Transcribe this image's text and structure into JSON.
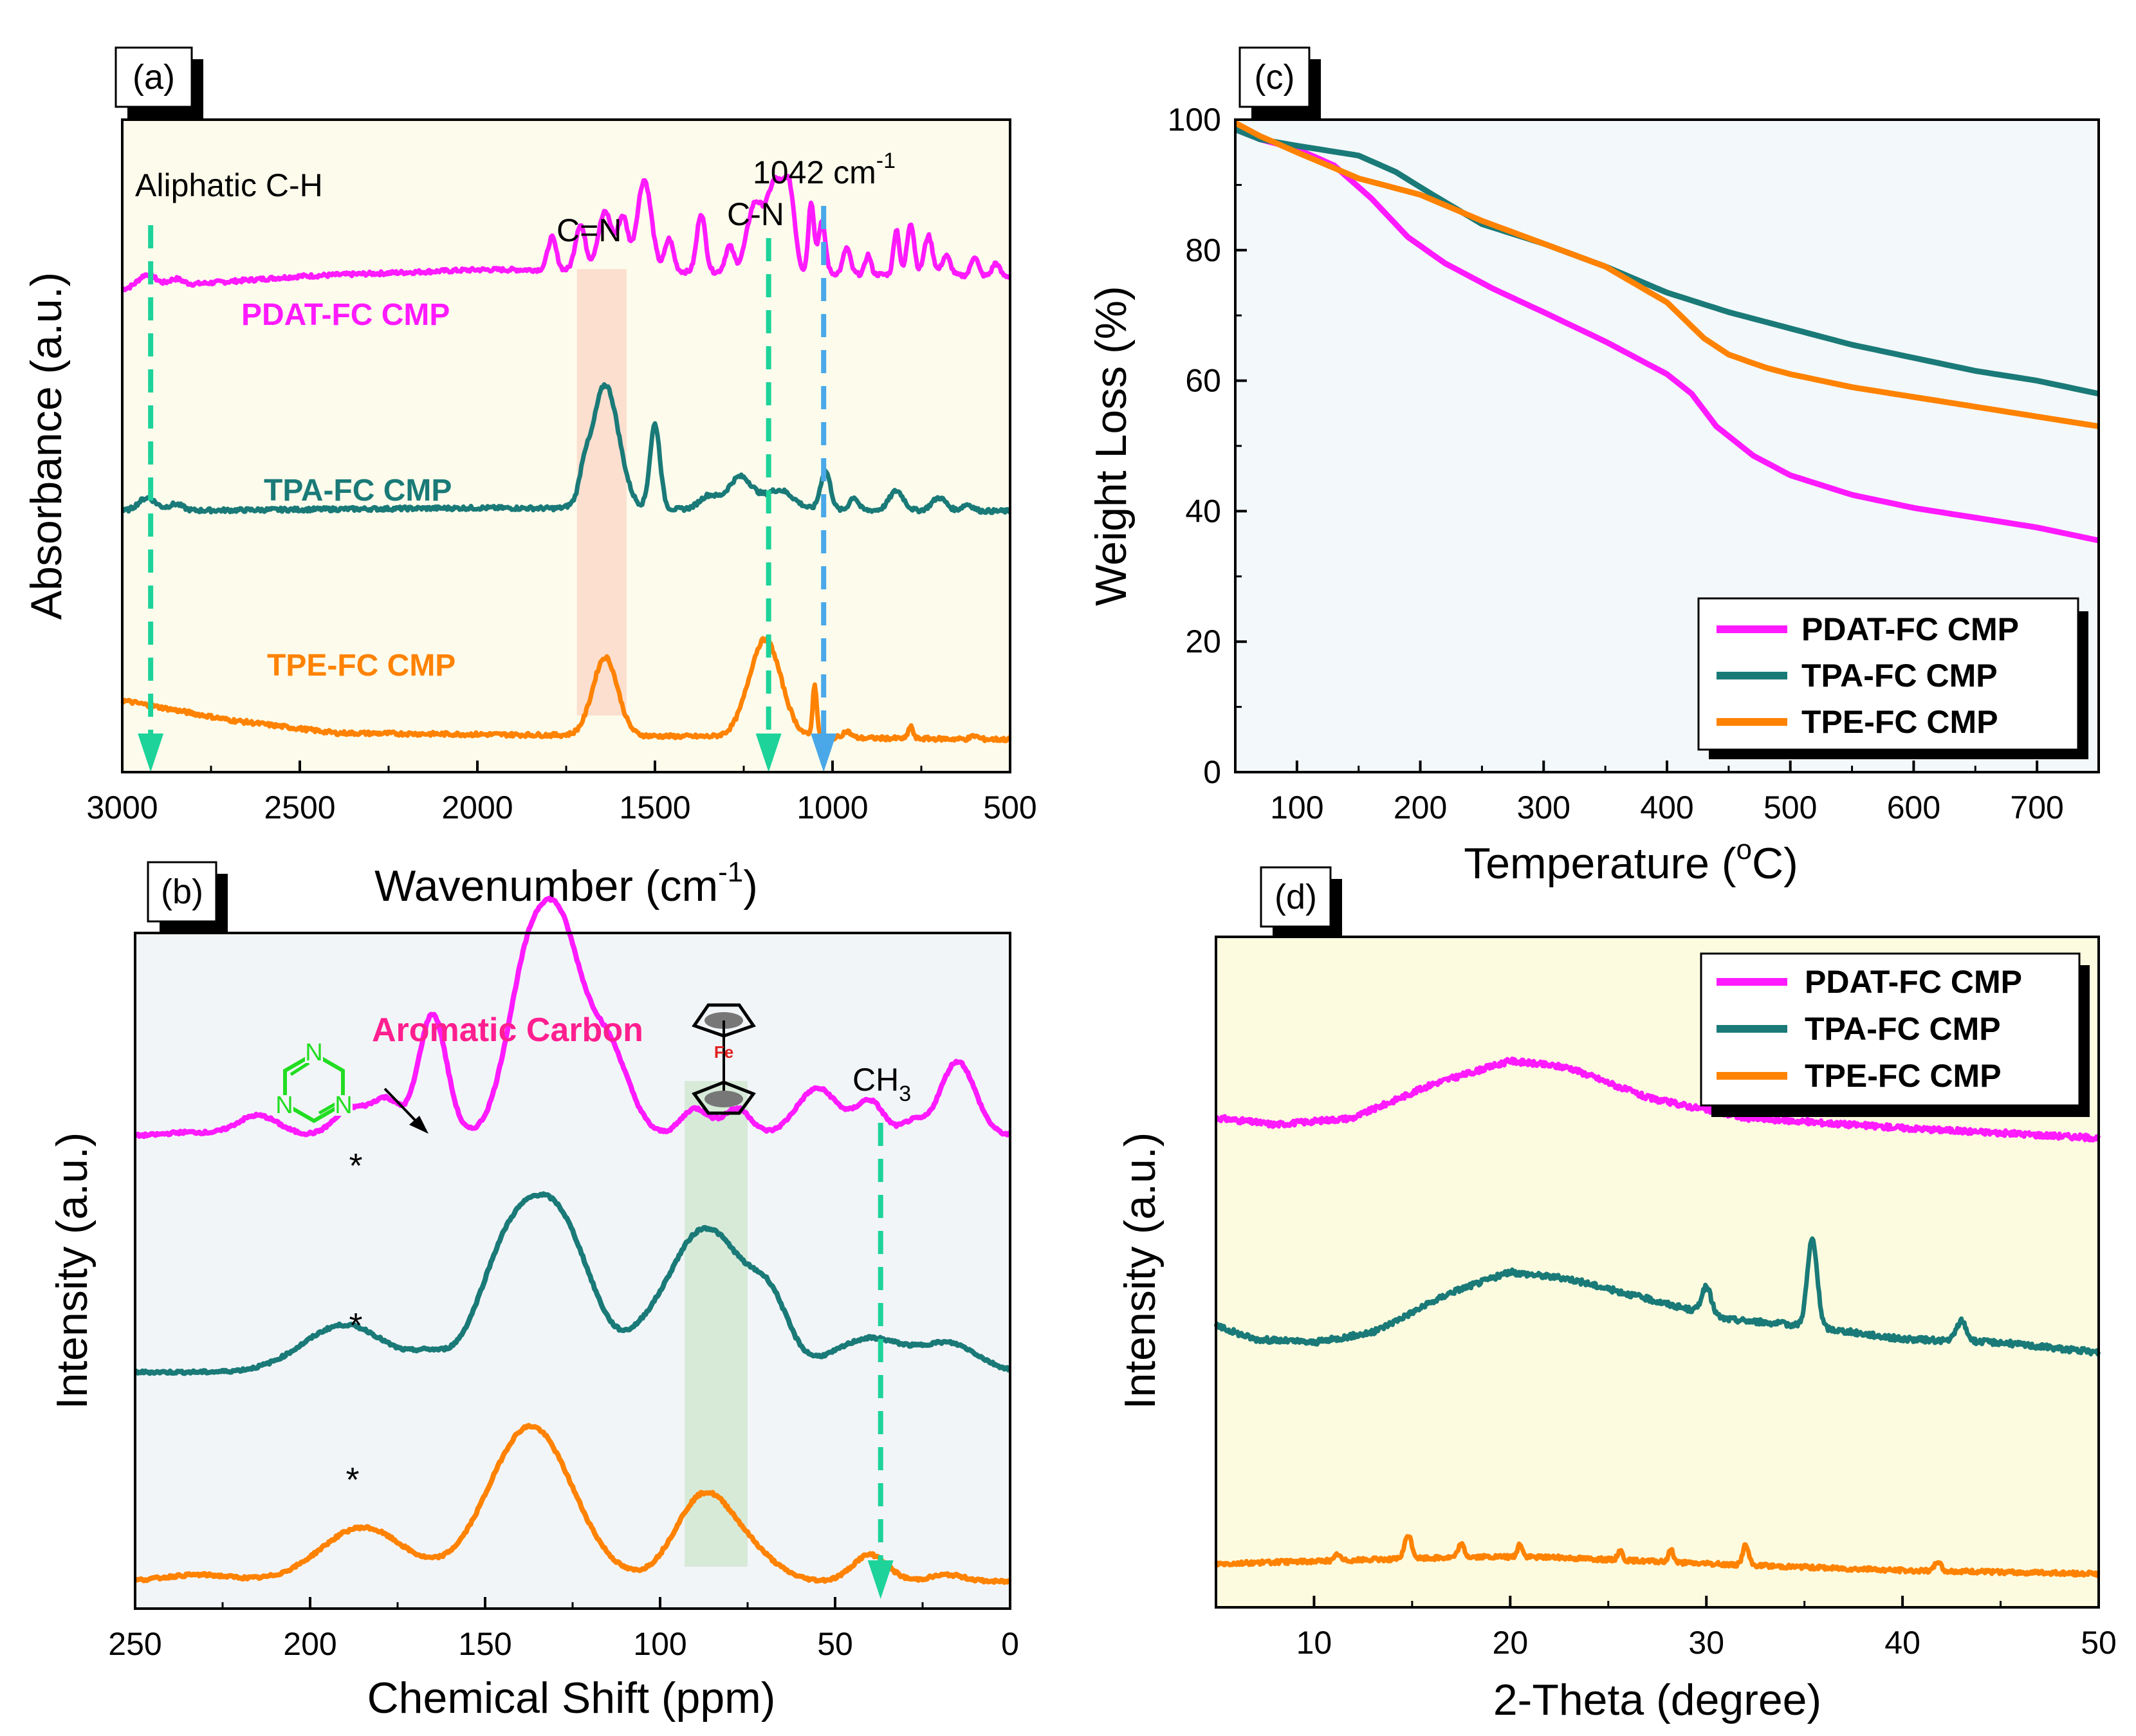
{
  "colors": {
    "pdat": "#ff1aff",
    "tpa": "#1a7a78",
    "tpe": "#ff8200",
    "pdat_label": "#ff1aff",
    "aromatic": "#ff1f8f",
    "panel_a_bg": "#fdfcec",
    "panel_b_bg": "#f2f5f8",
    "panel_c_bg": "#f3f8fa",
    "panel_d_bg": "#fdfbdf",
    "green_arrow": "#1dd39a",
    "blue_arrow": "#4aa8e8",
    "cn_band": "#fbd6c6",
    "fe_band": "#cfe7cf",
    "triazine": "#22dd22"
  },
  "chart_data": [
    {
      "panel": "(a)",
      "type": "line",
      "xlabel": "Wavenumber (cm",
      "xlabel_sup": "-1",
      "xlabel_close": ")",
      "ylabel": "Absorbance (a.u.)",
      "xlim": [
        3000,
        500
      ],
      "xticks": [
        "3000",
        "2500",
        "2000",
        "1500",
        "1000",
        "500"
      ],
      "xtick_values": [
        3000,
        2500,
        2000,
        1500,
        1000,
        500
      ],
      "annotations": {
        "aliphatic": "Aliphatic C-H",
        "cn_double": "C=N",
        "cn_single": "C-N",
        "peak_1042": "1042 cm",
        "peak_1042_sup": "-1"
      },
      "markers": {
        "aliphatic_x": 2920,
        "cn_x": 1180,
        "peak_x": 1025,
        "band_from": 1720,
        "band_to": 1580
      },
      "series": [
        {
          "name": "PDAT-FC CMP",
          "offset": 0.74,
          "baseline": [
            [
              3000,
              0
            ],
            [
              2500,
              0.02
            ],
            [
              2000,
              0.03
            ],
            [
              1850,
              0.03
            ],
            [
              500,
              0.02
            ]
          ],
          "peaks": [
            [
              2930,
              0.02,
              25
            ],
            [
              2850,
              0.01,
              20
            ],
            [
              1790,
              0.05,
              12
            ],
            [
              1710,
              0.07,
              14
            ],
            [
              1640,
              0.09,
              20
            ],
            [
              1590,
              0.08,
              14
            ],
            [
              1530,
              0.14,
              20
            ],
            [
              1460,
              0.05,
              12
            ],
            [
              1370,
              0.09,
              12
            ],
            [
              1290,
              0.04,
              12
            ],
            [
              1220,
              0.1,
              22
            ],
            [
              1160,
              0.14,
              25
            ],
            [
              1120,
              0.1,
              15
            ],
            [
              1060,
              0.11,
              8
            ],
            [
              1030,
              0.08,
              10
            ],
            [
              960,
              0.04,
              10
            ],
            [
              900,
              0.03,
              8
            ],
            [
              820,
              0.07,
              8
            ],
            [
              780,
              0.08,
              10
            ],
            [
              730,
              0.06,
              12
            ],
            [
              680,
              0.03,
              12
            ],
            [
              600,
              0.03,
              10
            ],
            [
              540,
              0.02,
              10
            ]
          ]
        },
        {
          "name": "TPA-FC CMP",
          "offset": 0.4,
          "baseline": [
            [
              3000,
              0
            ],
            [
              2000,
              0.005
            ],
            [
              500,
              0
            ]
          ],
          "peaks": [
            [
              2930,
              0.02,
              25
            ],
            [
              2850,
              0.01,
              20
            ],
            [
              1700,
              0.03,
              12
            ],
            [
              1640,
              0.19,
              38
            ],
            [
              1500,
              0.13,
              14
            ],
            [
              1350,
              0.02,
              25
            ],
            [
              1260,
              0.05,
              35
            ],
            [
              1150,
              0.03,
              40
            ],
            [
              1020,
              0.06,
              14
            ],
            [
              940,
              0.02,
              12
            ],
            [
              820,
              0.03,
              20
            ],
            [
              700,
              0.02,
              20
            ],
            [
              620,
              0.01,
              15
            ]
          ]
        },
        {
          "name": "TPE-FC CMP",
          "offset": 0.06,
          "baseline": [
            [
              3000,
              0.05
            ],
            [
              2700,
              0.02
            ],
            [
              2400,
              0
            ],
            [
              500,
              -0.01
            ]
          ],
          "peaks": [
            [
              1640,
              0.12,
              35
            ],
            [
              1190,
              0.15,
              45
            ],
            [
              1050,
              0.08,
              6
            ],
            [
              960,
              0.01,
              12
            ],
            [
              780,
              0.02,
              6
            ],
            [
              600,
              0.005,
              10
            ]
          ]
        }
      ]
    },
    {
      "panel": "(b)",
      "type": "line",
      "xlabel": "Chemical Shift (ppm)",
      "ylabel": "Intensity (a.u.)",
      "xlim": [
        250,
        0
      ],
      "xticks": [
        "250",
        "200",
        "150",
        "100",
        "50",
        "0"
      ],
      "xtick_values": [
        250,
        200,
        150,
        100,
        50,
        0
      ],
      "annotations": {
        "aromatic": "Aromatic Carbon",
        "ch3": "CH",
        "ch3_sub": "3",
        "fe": "Fe",
        "triazine_n": "N",
        "star": "*"
      },
      "markers": {
        "ch3_x": 37,
        "band_from": 93,
        "band_to": 75
      },
      "series": [
        {
          "name": "PDAT-FC CMP",
          "offset": 0.7,
          "peaks": [
            [
              235,
              0.005,
              6
            ],
            [
              215,
              0.03,
              6
            ],
            [
              188,
              0.04,
              5
            ],
            [
              178,
              0.05,
              4
            ],
            [
              165,
              0.18,
              4
            ],
            [
              138,
              0.23,
              6
            ],
            [
              128,
              0.26,
              6
            ],
            [
              115,
              0.13,
              6
            ],
            [
              90,
              0.04,
              4
            ],
            [
              78,
              0.04,
              4
            ],
            [
              55,
              0.07,
              6
            ],
            [
              40,
              0.05,
              4
            ],
            [
              28,
              0.02,
              3
            ],
            [
              15,
              0.11,
              5
            ]
          ]
        },
        {
          "name": "TPA-FC CMP",
          "offset": 0.35,
          "peaks": [
            [
              190,
              0.07,
              12
            ],
            [
              166,
              0.02,
              5
            ],
            [
              145,
              0.13,
              8
            ],
            [
              130,
              0.23,
              10
            ],
            [
              105,
              0.02,
              5
            ],
            [
              92,
              0.13,
              9
            ],
            [
              80,
              0.13,
              10
            ],
            [
              68,
              0.06,
              5
            ],
            [
              40,
              0.05,
              10
            ],
            [
              17,
              0.04,
              8
            ]
          ]
        },
        {
          "name": "TPE-FC CMP",
          "offset": 0.04,
          "peaks": [
            [
              232,
              0.01,
              10
            ],
            [
              185,
              0.08,
              12
            ],
            [
              137,
              0.23,
              12
            ],
            [
              88,
              0.12,
              8
            ],
            [
              75,
              0.04,
              8
            ],
            [
              40,
              0.04,
              5
            ],
            [
              18,
              0.01,
              5
            ]
          ]
        }
      ]
    },
    {
      "panel": "(c)",
      "type": "line",
      "xlabel": "Temperature (",
      "xlabel_sup": "o",
      "xlabel_close": "C)",
      "ylabel": "Weight Loss (%)",
      "xlim": [
        50,
        750
      ],
      "ylim": [
        0,
        100
      ],
      "xticks": [
        "100",
        "200",
        "300",
        "400",
        "500",
        "600",
        "700"
      ],
      "xtick_values": [
        100,
        200,
        300,
        400,
        500,
        600,
        700
      ],
      "yticks": [
        "0",
        "20",
        "40",
        "60",
        "80",
        "100"
      ],
      "ytick_values": [
        0,
        20,
        40,
        60,
        80,
        100
      ],
      "legend": "top-right inset above bottom",
      "series": [
        {
          "name": "PDAT-FC CMP",
          "x": [
            50,
            70,
            100,
            130,
            160,
            190,
            220,
            260,
            300,
            350,
            400,
            420,
            440,
            470,
            500,
            550,
            600,
            650,
            700,
            750
          ],
          "y": [
            98.5,
            97,
            95.5,
            93,
            88,
            82,
            78,
            74,
            70.5,
            66,
            61,
            58,
            53,
            48.5,
            45.5,
            42.5,
            40.5,
            39,
            37.5,
            35.5
          ]
        },
        {
          "name": "TPA-FC CMP",
          "x": [
            50,
            70,
            100,
            150,
            180,
            210,
            250,
            300,
            350,
            400,
            450,
            500,
            550,
            600,
            650,
            700,
            750
          ],
          "y": [
            98.5,
            97,
            96,
            94.5,
            92,
            88.5,
            84,
            81,
            77.5,
            73.5,
            70.5,
            68,
            65.5,
            63.5,
            61.5,
            60,
            58
          ]
        },
        {
          "name": "TPE-FC CMP",
          "x": [
            50,
            70,
            100,
            150,
            200,
            250,
            300,
            350,
            400,
            430,
            450,
            480,
            500,
            550,
            600,
            650,
            700,
            750
          ],
          "y": [
            99.5,
            97.5,
            95,
            91,
            88.5,
            84.5,
            81,
            77.5,
            72,
            66.5,
            64,
            62,
            61,
            59,
            57.5,
            56,
            54.5,
            53
          ]
        }
      ]
    },
    {
      "panel": "(d)",
      "type": "line",
      "xlabel": "2-Theta (degree)",
      "ylabel": "Intensity (a.u.)",
      "xlim": [
        5,
        50
      ],
      "xticks": [
        "10",
        "20",
        "30",
        "40",
        "50"
      ],
      "xtick_values": [
        10,
        20,
        30,
        40,
        50
      ],
      "legend": "top-right",
      "series": [
        {
          "name": "PDAT-FC CMP",
          "offset": 0.69,
          "baseline": [
            [
              5,
              0.04
            ],
            [
              8,
              0.03
            ],
            [
              12,
              0.04
            ],
            [
              16,
              0.09
            ],
            [
              20,
              0.125
            ],
            [
              23,
              0.115
            ],
            [
              27,
              0.07
            ],
            [
              32,
              0.04
            ],
            [
              40,
              0.025
            ],
            [
              50,
              0.01
            ]
          ],
          "peaks": []
        },
        {
          "name": "TPA-FC CMP",
          "offset": 0.36,
          "baseline": [
            [
              5,
              0.06
            ],
            [
              7,
              0.04
            ],
            [
              10,
              0.035
            ],
            [
              13,
              0.05
            ],
            [
              17,
              0.11
            ],
            [
              20,
              0.14
            ],
            [
              23,
              0.13
            ],
            [
              27,
              0.1
            ],
            [
              31,
              0.07
            ],
            [
              35,
              0.06
            ],
            [
              40,
              0.04
            ],
            [
              45,
              0.035
            ],
            [
              50,
              0.02
            ]
          ],
          "peaks": [
            [
              30,
              0.04,
              0.25
            ],
            [
              35.4,
              0.13,
              0.25
            ],
            [
              43,
              0.03,
              0.25
            ]
          ]
        },
        {
          "name": "TPE-FC CMP",
          "offset": 0.05,
          "baseline": [
            [
              5,
              0.015
            ],
            [
              18,
              0.025
            ],
            [
              22,
              0.025
            ],
            [
              30,
              0.015
            ],
            [
              40,
              0.005
            ],
            [
              50,
              0.0
            ]
          ],
          "peaks": [
            [
              11.2,
              0.01,
              0.12
            ],
            [
              14.8,
              0.035,
              0.18
            ],
            [
              17.5,
              0.02,
              0.15
            ],
            [
              20.5,
              0.02,
              0.12
            ],
            [
              25.6,
              0.015,
              0.12
            ],
            [
              28.2,
              0.02,
              0.12
            ],
            [
              32,
              0.03,
              0.15
            ],
            [
              41.8,
              0.015,
              0.15
            ]
          ]
        }
      ]
    }
  ]
}
